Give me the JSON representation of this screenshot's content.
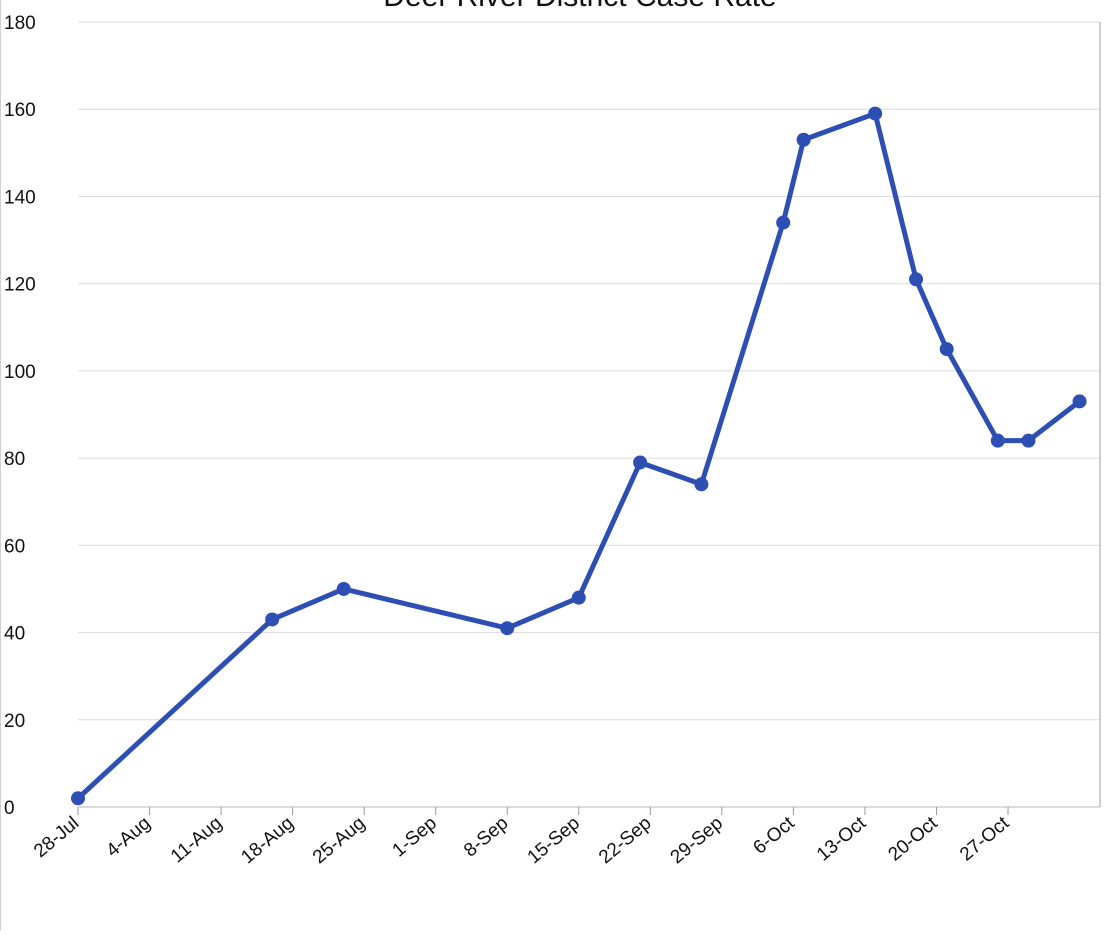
{
  "chart_data": {
    "type": "line",
    "title": "Deer River District Case Rate",
    "xlabel": "",
    "ylabel": "",
    "ylim": [
      0,
      180
    ],
    "yticks": [
      0,
      20,
      40,
      60,
      80,
      100,
      120,
      140,
      160,
      180
    ],
    "xlim": [
      "2020-07-28",
      "2020-11-05"
    ],
    "xticks": [
      {
        "label": "28-Jul",
        "date": "2020-07-28"
      },
      {
        "label": "4-Aug",
        "date": "2020-08-04"
      },
      {
        "label": "11-Aug",
        "date": "2020-08-11"
      },
      {
        "label": "18-Aug",
        "date": "2020-08-18"
      },
      {
        "label": "25-Aug",
        "date": "2020-08-25"
      },
      {
        "label": "1-Sep",
        "date": "2020-09-01"
      },
      {
        "label": "8-Sep",
        "date": "2020-09-08"
      },
      {
        "label": "15-Sep",
        "date": "2020-09-15"
      },
      {
        "label": "22-Sep",
        "date": "2020-09-22"
      },
      {
        "label": "29-Sep",
        "date": "2020-09-29"
      },
      {
        "label": "6-Oct",
        "date": "2020-10-06"
      },
      {
        "label": "13-Oct",
        "date": "2020-10-13"
      },
      {
        "label": "20-Oct",
        "date": "2020-10-20"
      },
      {
        "label": "27-Oct",
        "date": "2020-10-27"
      }
    ],
    "grid": true,
    "series": [
      {
        "color": "#2d4fb4",
        "points": [
          {
            "x": "2020-07-28",
            "y": 2
          },
          {
            "x": "2020-08-16",
            "y": 43
          },
          {
            "x": "2020-08-23",
            "y": 50
          },
          {
            "x": "2020-09-08",
            "y": 41
          },
          {
            "x": "2020-09-15",
            "y": 48
          },
          {
            "x": "2020-09-21",
            "y": 79
          },
          {
            "x": "2020-09-27",
            "y": 74
          },
          {
            "x": "2020-10-05",
            "y": 134
          },
          {
            "x": "2020-10-07",
            "y": 153
          },
          {
            "x": "2020-10-14",
            "y": 159
          },
          {
            "x": "2020-10-18",
            "y": 121
          },
          {
            "x": "2020-10-21",
            "y": 105
          },
          {
            "x": "2020-10-26",
            "y": 84
          },
          {
            "x": "2020-10-29",
            "y": 84
          },
          {
            "x": "2020-11-03",
            "y": 93
          }
        ]
      }
    ]
  }
}
